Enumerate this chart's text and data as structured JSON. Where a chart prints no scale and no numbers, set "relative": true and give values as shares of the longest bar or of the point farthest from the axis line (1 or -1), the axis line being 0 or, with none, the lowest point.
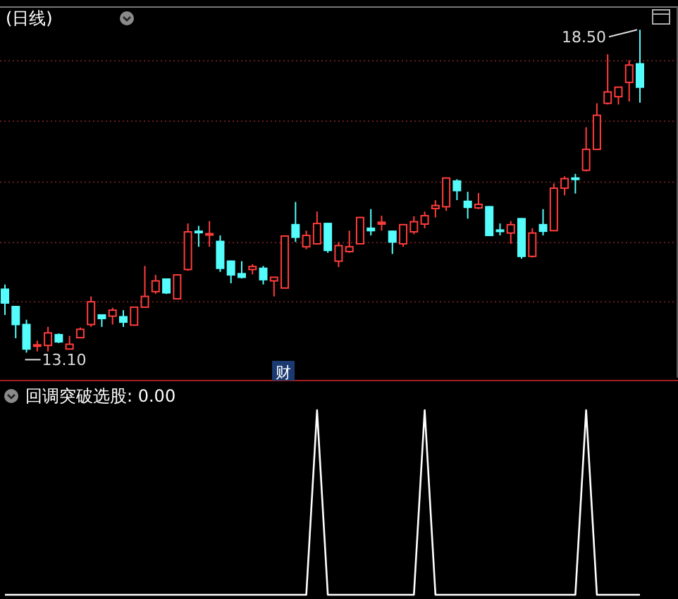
{
  "chart_data": [
    {
      "type": "candlestick",
      "title": "(日线)",
      "categories": [
        null,
        null,
        null,
        null,
        null,
        null,
        null,
        null,
        null,
        null,
        null,
        null,
        null,
        null,
        null,
        null,
        null,
        null,
        null,
        null,
        null,
        null,
        null,
        null,
        null,
        null,
        null,
        null,
        null,
        null,
        null,
        null,
        null,
        null,
        null,
        null,
        null,
        null,
        null,
        null,
        null,
        null,
        null,
        null,
        null,
        null,
        null,
        null,
        null,
        null,
        null,
        null,
        null,
        null,
        null,
        null,
        null,
        null,
        null,
        null
      ],
      "ohlc": [
        [
          14.16,
          14.24,
          13.73,
          13.93
        ],
        [
          13.87,
          13.88,
          13.34,
          13.57
        ],
        [
          13.57,
          13.65,
          13.1,
          13.16
        ],
        [
          13.22,
          13.3,
          13.12,
          13.23
        ],
        [
          13.22,
          13.53,
          13.12,
          13.43
        ],
        [
          13.4,
          13.42,
          13.26,
          13.28
        ],
        [
          13.16,
          13.38,
          13.16,
          13.24
        ],
        [
          13.35,
          13.52,
          13.34,
          13.49
        ],
        [
          13.57,
          14.04,
          13.53,
          13.95
        ],
        [
          13.73,
          13.74,
          13.53,
          13.67
        ],
        [
          13.71,
          13.85,
          13.57,
          13.81
        ],
        [
          13.7,
          13.81,
          13.53,
          13.61
        ],
        [
          13.56,
          13.87,
          13.55,
          13.86
        ],
        [
          13.86,
          14.55,
          13.86,
          14.04
        ],
        [
          14.12,
          14.4,
          14.08,
          14.3
        ],
        [
          14.33,
          14.34,
          14.08,
          14.1
        ],
        [
          14.0,
          14.41,
          13.99,
          14.4
        ],
        [
          14.49,
          15.26,
          14.47,
          15.12
        ],
        [
          15.13,
          15.22,
          14.87,
          15.12
        ],
        [
          15.08,
          15.3,
          14.87,
          15.09
        ],
        [
          14.96,
          15.06,
          14.45,
          14.51
        ],
        [
          14.63,
          14.64,
          14.26,
          14.4
        ],
        [
          14.42,
          14.63,
          14.34,
          14.36
        ],
        [
          14.49,
          14.58,
          14.41,
          14.54
        ],
        [
          14.51,
          14.55,
          14.24,
          14.32
        ],
        [
          14.3,
          14.36,
          14.04,
          14.36
        ],
        [
          14.18,
          15.06,
          14.18,
          15.05
        ],
        [
          15.24,
          15.62,
          14.95,
          15.03
        ],
        [
          14.87,
          15.14,
          14.83,
          15.06
        ],
        [
          14.92,
          15.46,
          14.92,
          15.26
        ],
        [
          15.26,
          15.27,
          14.77,
          14.81
        ],
        [
          14.63,
          14.95,
          14.53,
          14.89
        ],
        [
          14.79,
          15.14,
          14.77,
          14.87
        ],
        [
          14.92,
          15.37,
          14.91,
          15.36
        ],
        [
          15.18,
          15.5,
          15.06,
          15.14
        ],
        [
          15.25,
          15.39,
          15.14,
          15.28
        ],
        [
          15.13,
          15.14,
          14.75,
          14.95
        ],
        [
          14.92,
          15.25,
          14.87,
          15.24
        ],
        [
          15.12,
          15.38,
          15.08,
          15.29
        ],
        [
          15.25,
          15.46,
          15.18,
          15.39
        ],
        [
          15.51,
          15.65,
          15.36,
          15.56
        ],
        [
          15.54,
          16.03,
          15.47,
          16.02
        ],
        [
          15.97,
          16.0,
          15.65,
          15.81
        ],
        [
          15.63,
          15.79,
          15.34,
          15.53
        ],
        [
          15.52,
          15.77,
          15.5,
          15.58
        ],
        [
          15.54,
          15.55,
          15.06,
          15.06
        ],
        [
          15.15,
          15.26,
          15.06,
          15.13
        ],
        [
          15.1,
          15.3,
          14.92,
          15.24
        ],
        [
          15.34,
          15.35,
          14.67,
          14.71
        ],
        [
          14.71,
          15.18,
          14.69,
          15.1
        ],
        [
          15.24,
          15.5,
          15.06,
          15.13
        ],
        [
          15.14,
          15.93,
          15.14,
          15.85
        ],
        [
          15.85,
          16.05,
          15.73,
          16.01
        ],
        [
          16.02,
          16.09,
          15.76,
          16.0
        ],
        [
          16.15,
          16.87,
          16.13,
          16.5
        ],
        [
          16.5,
          17.27,
          16.5,
          17.07
        ],
        [
          17.27,
          18.09,
          17.25,
          17.46
        ],
        [
          17.38,
          17.54,
          17.25,
          17.54
        ],
        [
          17.62,
          17.99,
          17.3,
          17.91
        ],
        [
          17.93,
          18.5,
          17.28,
          17.54
        ]
      ],
      "ylim": [
        12.68,
        18.88
      ],
      "yticks": [
        {
          "value": 13.95,
          "label": null
        },
        {
          "value": 14.94,
          "label": null
        },
        {
          "value": 15.95,
          "label": null
        },
        {
          "value": 16.97,
          "label": null
        },
        {
          "value": 17.98,
          "label": null
        }
      ],
      "grid": true,
      "annotations": [
        "18.50",
        "13.10",
        "财"
      ]
    },
    {
      "type": "line",
      "title": "回调突破选股: 0.00",
      "relative": true,
      "categories": [
        null,
        null,
        null,
        null,
        null,
        null,
        null,
        null,
        null,
        null,
        null,
        null,
        null,
        null,
        null,
        null,
        null,
        null,
        null,
        null,
        null,
        null,
        null,
        null,
        null,
        null,
        null,
        null,
        null,
        null,
        null,
        null,
        null,
        null,
        null,
        null,
        null,
        null,
        null,
        null,
        null,
        null,
        null,
        null,
        null,
        null,
        null,
        null,
        null,
        null,
        null,
        null,
        null,
        null,
        null,
        null,
        null,
        null,
        null,
        null
      ],
      "series": [
        {
          "color": "#ffffff",
          "values": [
            0,
            0,
            0,
            0,
            0,
            0,
            0,
            0,
            0,
            0,
            0,
            0,
            0,
            0,
            0,
            0,
            0,
            0,
            0,
            0,
            0,
            0,
            0,
            0,
            0,
            0,
            0,
            0,
            0,
            1,
            0,
            0,
            0,
            0,
            0,
            0,
            0,
            0,
            0,
            1,
            0,
            0,
            0,
            0,
            0,
            0,
            0,
            0,
            0,
            0,
            0,
            0,
            0,
            0,
            1,
            0,
            0,
            0,
            0,
            0
          ]
        }
      ]
    }
  ]
}
